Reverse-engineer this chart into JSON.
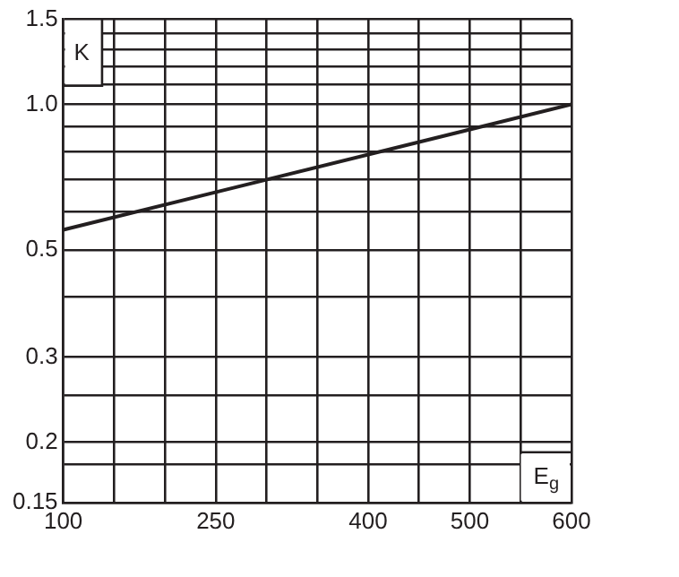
{
  "chart_data": {
    "type": "line",
    "xlabel": "E$_{g}$",
    "ylabel": "K",
    "x": [
      100,
      600
    ],
    "series": [
      {
        "color": "#231f20",
        "values": [
          0.55,
          1.0
        ]
      }
    ],
    "xlim": [
      100,
      600
    ],
    "xticks": [
      100,
      {
        "value": 150,
        "label": null
      },
      {
        "value": 200,
        "label": null
      },
      250,
      {
        "value": 300,
        "label": null
      },
      {
        "value": 350,
        "label": null
      },
      400,
      {
        "value": 450,
        "label": null
      },
      500,
      {
        "value": 550,
        "label": null
      },
      600
    ],
    "ylim": [
      0.15,
      1.5
    ],
    "log": "y",
    "yticks": [
      0.15,
      {
        "value": 0.18,
        "label": null
      },
      0.2,
      {
        "value": 0.25,
        "label": null
      },
      0.3,
      {
        "value": 0.4,
        "label": null
      },
      0.5,
      {
        "value": 0.6,
        "label": null
      },
      {
        "value": 0.7,
        "label": null
      },
      {
        "value": 0.8,
        "label": null
      },
      {
        "value": 0.9,
        "label": null
      },
      {
        "value": 1.0,
        "label": "1.0"
      },
      {
        "value": 1.1,
        "label": null
      },
      {
        "value": 1.2,
        "label": null
      },
      {
        "value": 1.3,
        "label": null
      },
      {
        "value": 1.4,
        "label": null
      },
      1.5
    ],
    "grid": true,
    "legend": false,
    "marker": "none",
    "line_style": "solid"
  }
}
